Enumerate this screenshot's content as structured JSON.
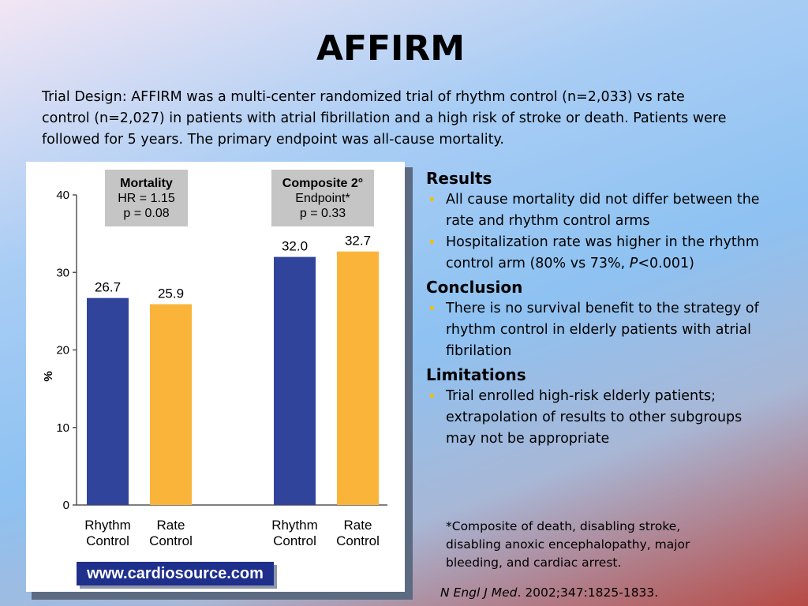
{
  "slide": {
    "title": "AFFIRM",
    "intro": "Trial Design: AFFIRM was a multi-center randomized trial of rhythm control (n=2,033) vs rate control (n=2,027) in patients with atrial fibrillation and a high risk of stroke or death. Patients were followed for 5 years. The primary endpoint was all-cause mortality."
  },
  "chart_data": {
    "type": "bar",
    "ylabel": "%",
    "ylim": [
      0,
      40
    ],
    "yticks": [
      "0",
      "10",
      "20",
      "30",
      "40"
    ],
    "groups": [
      {
        "box_lines": [
          "Mortality",
          "HR = 1.15",
          "p = 0.08"
        ],
        "bars": [
          {
            "label_lines": [
              "Rhythm",
              "Control"
            ],
            "value": 26.7,
            "value_label": "26.7",
            "color": "#31449b"
          },
          {
            "label_lines": [
              "Rate",
              "Control"
            ],
            "value": 25.9,
            "value_label": "25.9",
            "color": "#fbb43a"
          }
        ]
      },
      {
        "box_lines": [
          "Composite 2°",
          "Endpoint*",
          "p = 0.33"
        ],
        "bars": [
          {
            "label_lines": [
              "Rhythm",
              "Control"
            ],
            "value": 32.0,
            "value_label": "32.0",
            "color": "#31449b"
          },
          {
            "label_lines": [
              "Rate",
              "Control"
            ],
            "value": 32.7,
            "value_label": "32.7",
            "color": "#fbb43a"
          }
        ]
      }
    ],
    "source_banner": "www.cardiosource.com"
  },
  "results": {
    "heading": "Results",
    "items": [
      "All cause mortality did not differ between the rate and rhythm control arms",
      "Hospitalization rate was higher in the rhythm control arm (80% vs 73%, P<0.001)"
    ]
  },
  "conclusion": {
    "heading": "Conclusion",
    "items": [
      "There is no survival benefit to the strategy of rhythm control in elderly patients with atrial fibrilation"
    ]
  },
  "limitations": {
    "heading": "Limitations",
    "items": [
      "Trial enrolled high-risk elderly patients; extrapolation of results to other subgroups may not be appropriate"
    ]
  },
  "footnote": "*Composite of death, disabling stroke, disabling anoxic encephalopathy, major bleeding, and cardiac arrest.",
  "citation": {
    "journal": "N Engl J Med",
    "rest": ". 2002;347:1825-1833."
  }
}
